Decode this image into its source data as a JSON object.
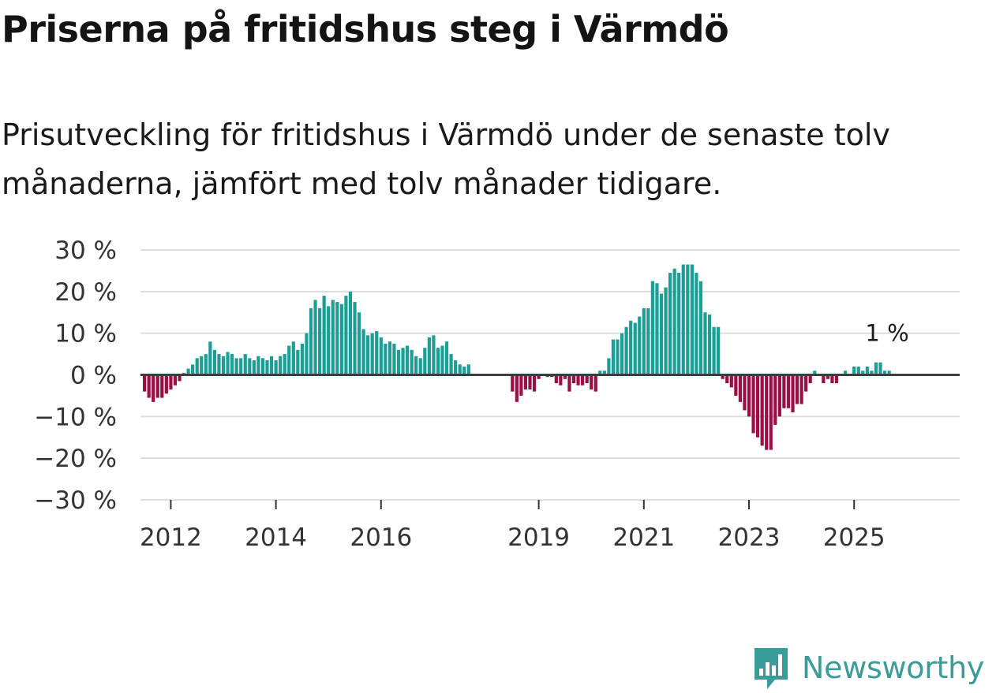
{
  "title": "Priserna på fritidshus steg i Värmdö",
  "subtitle": "Prisutveckling för fritidshus i Värmdö under de senaste tolv månaderna, jämfört med tolv månader tidigare.",
  "brand": {
    "name": "Newsworthy",
    "color": "#3a9c98"
  },
  "colors": {
    "positive": "#1a9e96",
    "negative": "#9b0f47",
    "zero_line": "#3d3d3d",
    "grid": "#dddddd"
  },
  "chart_data": {
    "type": "bar",
    "unit": "%",
    "ylim": [
      -30,
      30
    ],
    "yticks": [
      30,
      20,
      10,
      0,
      -10,
      -20,
      -30
    ],
    "ytick_labels": [
      "30 %",
      "20 %",
      "10 %",
      "0 %",
      "−10 %",
      "−20 %",
      "−30 %"
    ],
    "xtick_labels": [
      "2012",
      "2014",
      "2016",
      "2019",
      "2021",
      "2023",
      "2025"
    ],
    "xtick_index": [
      6,
      30,
      54,
      90,
      114,
      138,
      162
    ],
    "annotation": {
      "text": "1 %",
      "index": 171
    },
    "values": [
      -4,
      -5.5,
      -6.5,
      -5.5,
      -5.5,
      -4.5,
      -3.5,
      -2.5,
      -1.5,
      0.5,
      1.5,
      2.5,
      4,
      4.5,
      5,
      8,
      6,
      5,
      4.5,
      5.5,
      5,
      4,
      4,
      5,
      4,
      3.5,
      4.5,
      4,
      3.5,
      4.5,
      3.5,
      4.5,
      5,
      7,
      8,
      6,
      7.5,
      10,
      16,
      18,
      16,
      19,
      16.5,
      18,
      17.5,
      17,
      19,
      20,
      17.5,
      15,
      11,
      9.5,
      10,
      10.5,
      9,
      7.5,
      8,
      7.5,
      6,
      6.5,
      7,
      6,
      4.5,
      4,
      6.5,
      9,
      9.5,
      6.5,
      7,
      8,
      5,
      3.5,
      2.5,
      2,
      2.5,
      0,
      0,
      0,
      0,
      0,
      0,
      0,
      0,
      0,
      -4,
      -6.5,
      -5,
      -3.5,
      -3.5,
      -4,
      -1,
      0,
      -0.5,
      -0.5,
      -2,
      -2.5,
      -1,
      -4,
      -2,
      -2.5,
      -2.5,
      -2,
      -3.5,
      -4,
      1,
      1,
      4,
      8.5,
      8.5,
      10,
      11.5,
      13,
      12.5,
      14,
      16,
      16,
      22.5,
      22,
      19.5,
      21,
      24.5,
      25.5,
      24.5,
      26.5,
      26.5,
      26.5,
      24.5,
      22.5,
      15,
      14.5,
      11.5,
      11.5,
      -1,
      -2,
      -3,
      -5,
      -6.5,
      -8.5,
      -10,
      -14,
      -15,
      -17,
      -18,
      -18,
      -12,
      -10,
      -8,
      -8,
      -9,
      -7,
      -7,
      -4,
      -2,
      1,
      0,
      -2,
      -1,
      -2,
      -2,
      0,
      1,
      0,
      2,
      2,
      1,
      2,
      1,
      3,
      3,
      1,
      1
    ]
  }
}
